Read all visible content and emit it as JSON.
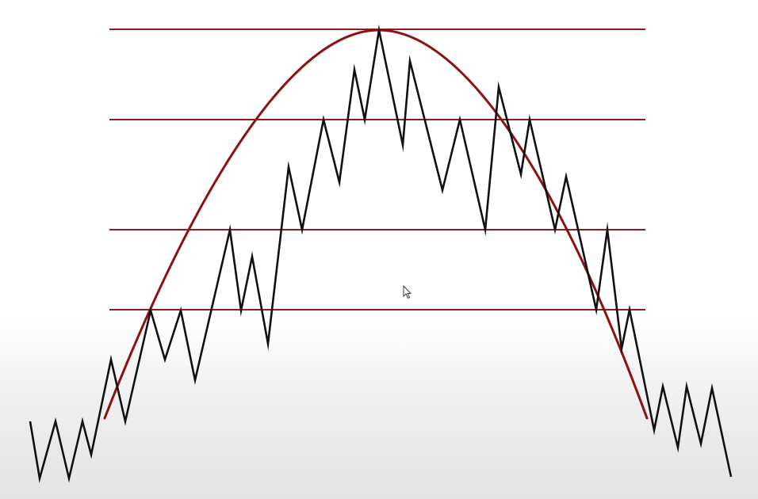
{
  "diagram": {
    "description_kind": "rounded-top / inverted-saucer chart pattern",
    "level_color": "#8a1c1c",
    "arc_color": "#8c1212",
    "price_color": "#111111",
    "cursor_icon": "mouse-pointer-icon"
  }
}
